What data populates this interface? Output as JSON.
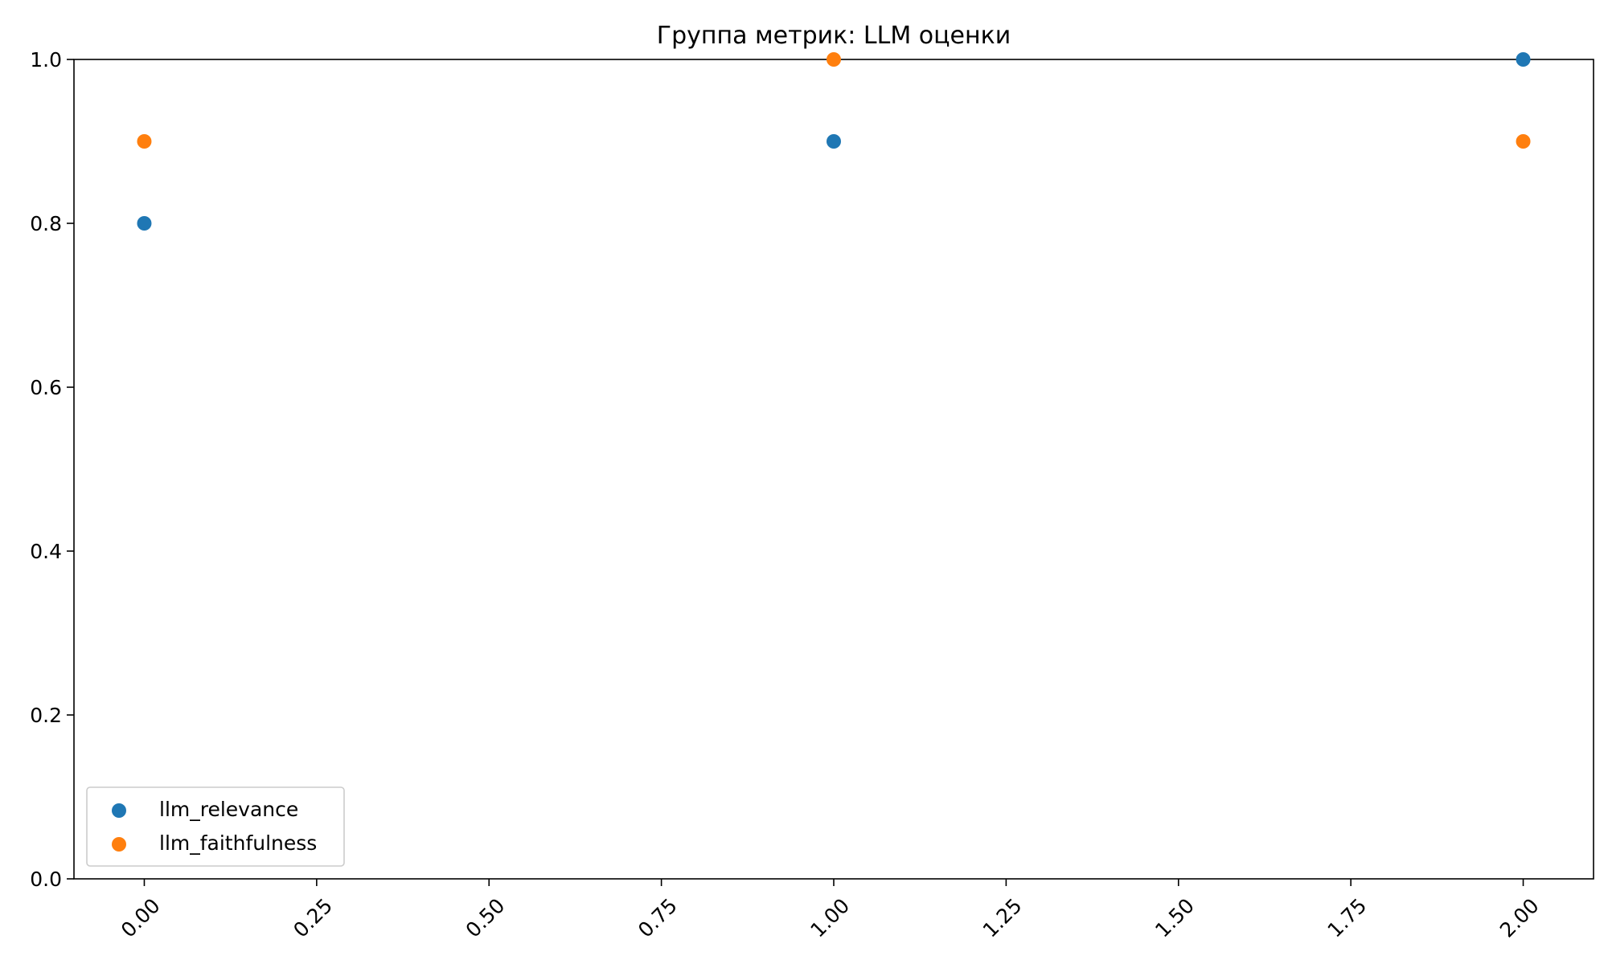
{
  "chart_data": {
    "type": "scatter",
    "title": "Группа метрик: LLM оценки",
    "xlabel": "",
    "ylabel": "",
    "xlim": [
      -0.102,
      2.102
    ],
    "ylim": [
      0.0,
      1.0
    ],
    "x_ticks": [
      0.0,
      0.25,
      0.5,
      0.75,
      1.0,
      1.25,
      1.5,
      1.75,
      2.0
    ],
    "x_tick_labels": [
      "0.00",
      "0.25",
      "0.50",
      "0.75",
      "1.00",
      "1.25",
      "1.50",
      "1.75",
      "2.00"
    ],
    "y_ticks": [
      0.0,
      0.2,
      0.4,
      0.6,
      0.8,
      1.0
    ],
    "y_tick_labels": [
      "0.0",
      "0.2",
      "0.4",
      "0.6",
      "0.8",
      "1.0"
    ],
    "grid": false,
    "legend_placement": "lower-left",
    "series": [
      {
        "name": "llm_relevance",
        "color": "#1f77b4",
        "x": [
          0,
          1,
          2
        ],
        "y": [
          0.8,
          0.9,
          1.0
        ]
      },
      {
        "name": "llm_faithfulness",
        "color": "#ff7f0e",
        "x": [
          0,
          1,
          2
        ],
        "y": [
          0.9,
          1.0,
          0.9
        ]
      }
    ]
  }
}
